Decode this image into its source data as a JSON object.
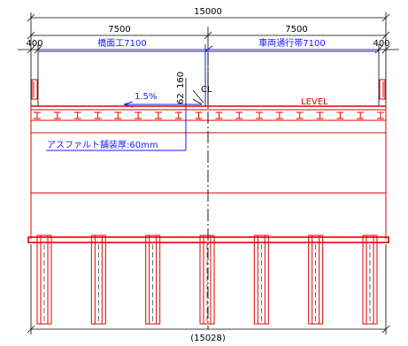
{
  "dimensions": {
    "total": "15000",
    "left_half": "7500",
    "right_half": "7500",
    "left_edge": "400",
    "right_edge": "400",
    "bottom_total": "(15028)"
  },
  "labels": {
    "bridge_deck": "橋面工7100",
    "carriageway": "車両通行帯7100",
    "slope": "1.5%",
    "height_62": "62",
    "height_160": "160",
    "centerline": "CL",
    "level": "LEVEL",
    "asphalt": "アスファルト舗装厚:60mm"
  },
  "colors": {
    "dimension": "#000000",
    "annotation": "#1a1aff",
    "structure": "#e00000"
  }
}
